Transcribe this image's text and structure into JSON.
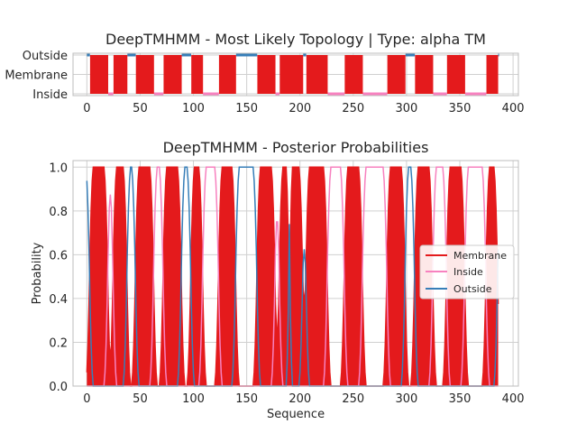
{
  "colors": {
    "membrane": "#e41a1c",
    "inside": "#f781bf",
    "outside": "#377eb8",
    "grid": "#d0d0d0",
    "spine": "#bdbdbd"
  },
  "chart_data": [
    {
      "type": "line",
      "title": "DeepTMHMM - Most Likely Topology | Type: alpha TM",
      "xlabel": "",
      "ylabel": "",
      "xlim": [
        -13,
        405
      ],
      "xticks": [
        0,
        50,
        100,
        150,
        200,
        250,
        300,
        350,
        400
      ],
      "xtick_labels": [
        "0",
        "50",
        "100",
        "150",
        "200",
        "250",
        "300",
        "350",
        "400"
      ],
      "yticks": [
        1,
        0.5,
        0
      ],
      "ytick_labels": [
        "Outside",
        "Membrane",
        "Inside"
      ],
      "grid": true,
      "length": 386,
      "membrane_segments": [
        [
          3,
          19
        ],
        [
          25,
          37
        ],
        [
          46,
          62
        ],
        [
          72,
          88
        ],
        [
          98,
          108
        ],
        [
          124,
          139
        ],
        [
          160,
          176
        ],
        [
          181,
          202
        ],
        [
          206,
          225
        ],
        [
          242,
          258
        ],
        [
          282,
          298
        ],
        [
          308,
          324
        ],
        [
          338,
          354
        ],
        [
          375,
          385
        ]
      ],
      "inside_segments": [
        [
          20,
          24
        ],
        [
          63,
          71
        ],
        [
          109,
          123
        ],
        [
          177,
          180
        ],
        [
          226,
          241
        ],
        [
          259,
          281
        ],
        [
          325,
          337
        ],
        [
          355,
          374
        ]
      ],
      "outside_segments": [
        [
          0,
          2
        ],
        [
          38,
          45
        ],
        [
          89,
          97
        ],
        [
          140,
          159
        ],
        [
          203,
          205
        ],
        [
          299,
          307
        ],
        [
          386,
          386
        ]
      ]
    },
    {
      "type": "line",
      "title": "DeepTMHMM - Posterior Probabilities",
      "xlabel": "Sequence",
      "ylabel": "Probability",
      "xlim": [
        -13,
        405
      ],
      "ylim": [
        0,
        1.03
      ],
      "xticks": [
        0,
        50,
        100,
        150,
        200,
        250,
        300,
        350,
        400
      ],
      "xtick_labels": [
        "0",
        "50",
        "100",
        "150",
        "200",
        "250",
        "300",
        "350",
        "400"
      ],
      "yticks": [
        0,
        0.2,
        0.4,
        0.6,
        0.8,
        1.0
      ],
      "ytick_labels": [
        "0.0",
        "0.2",
        "0.4",
        "0.6",
        "0.8",
        "1.0"
      ],
      "grid": true,
      "legend_position": "center-right",
      "series": [
        {
          "name": "Membrane",
          "color": "#e41a1c"
        },
        {
          "name": "Inside",
          "color": "#f781bf"
        },
        {
          "name": "Outside",
          "color": "#377eb8"
        }
      ],
      "outside_secondary_peak": {
        "x": 190,
        "y": 0.74
      }
    }
  ]
}
